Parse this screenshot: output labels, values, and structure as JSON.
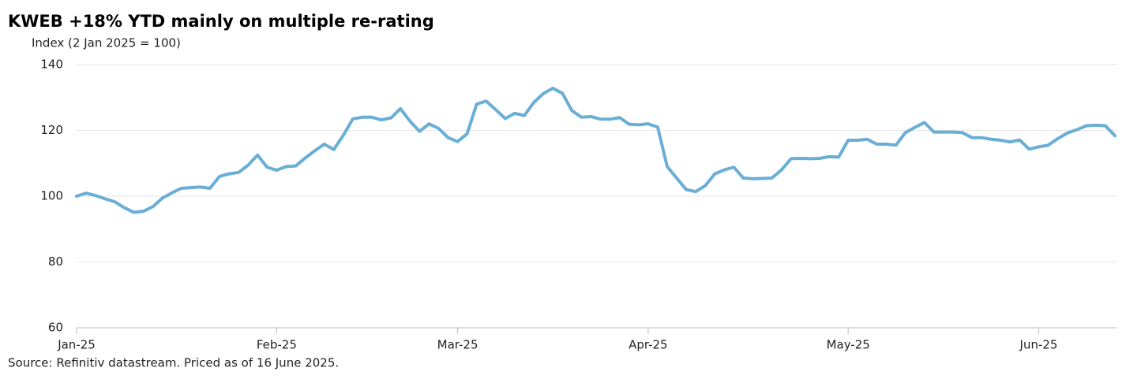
{
  "chart_data": {
    "type": "line",
    "title": "KWEB +18% YTD mainly on multiple re-rating",
    "y_label": "Index (2 Jan 2025 = 100)",
    "source": "Source: Refinitiv datastream. Priced as of 16 June 2025.",
    "categories": [
      "Jan-25",
      null,
      null,
      null,
      null,
      null,
      null,
      null,
      null,
      null,
      null,
      null,
      null,
      null,
      null,
      null,
      null,
      null,
      null,
      null,
      null,
      "Feb-25",
      null,
      null,
      null,
      null,
      null,
      null,
      null,
      null,
      null,
      null,
      null,
      null,
      null,
      null,
      null,
      null,
      null,
      null,
      "Mar-25",
      null,
      null,
      null,
      null,
      null,
      null,
      null,
      null,
      null,
      null,
      null,
      null,
      null,
      null,
      null,
      null,
      null,
      null,
      null,
      "Apr-25",
      null,
      null,
      null,
      null,
      null,
      null,
      null,
      null,
      null,
      null,
      null,
      null,
      null,
      null,
      null,
      null,
      null,
      null,
      null,
      null,
      "May-25",
      null,
      null,
      null,
      null,
      null,
      null,
      null,
      null,
      null,
      null,
      null,
      null,
      null,
      null,
      null,
      null,
      null,
      null,
      null,
      "Jun-25",
      null,
      null,
      null,
      null,
      null,
      null,
      null,
      null
    ],
    "series": [
      {
        "name": "KWEB",
        "color": "#6aaed6",
        "values": [
          100,
          100.9,
          100.2,
          99.2,
          98.3,
          96.5,
          95.1,
          95.4,
          96.8,
          99.4,
          101,
          102.4,
          102.6,
          102.8,
          102.4,
          106,
          106.8,
          107.2,
          109.4,
          112.5,
          108.8,
          107.9,
          109,
          109.2,
          111.6,
          113.8,
          115.8,
          114.2,
          118.5,
          123.5,
          124,
          124,
          123.2,
          123.8,
          126.6,
          122.8,
          119.7,
          122,
          120.6,
          117.8,
          116.6,
          119,
          128,
          128.9,
          126.3,
          123.6,
          125.2,
          124.5,
          128.5,
          131.2,
          132.8,
          131.3,
          126,
          124,
          124.2,
          123.4,
          123.4,
          123.9,
          121.9,
          121.7,
          122,
          121,
          109,
          105.5,
          102,
          101.4,
          103.2,
          106.8,
          108,
          108.8,
          105.5,
          105.3,
          105.4,
          105.5,
          108,
          111.4,
          111.5,
          111.4,
          111.5,
          112,
          111.9,
          117,
          117,
          117.3,
          115.8,
          115.8,
          115.5,
          119.3,
          120.9,
          122.4,
          119.5,
          119.5,
          119.5,
          119.3,
          117.8,
          117.8,
          117.3,
          117,
          116.5,
          117.1,
          114.3,
          115,
          115.5,
          117.5,
          119.2,
          120.2,
          121.4,
          121.6,
          121.4,
          118.4
        ]
      }
    ],
    "ylim": [
      60,
      140
    ],
    "yticks": [
      60,
      80,
      100,
      120,
      140
    ],
    "grid": true
  }
}
